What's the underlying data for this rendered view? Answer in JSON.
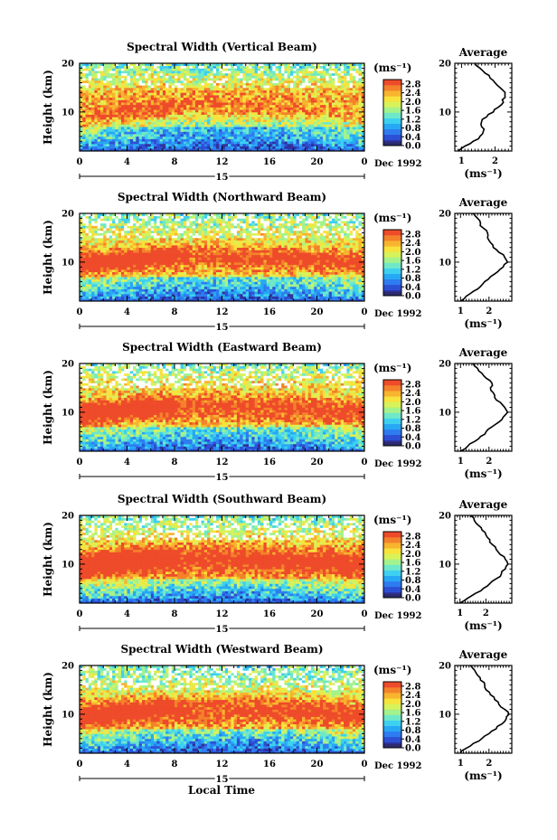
{
  "figure": {
    "colorbar_unit": "(ms⁻¹)",
    "colorbar_ticks": [
      "2.8",
      "2.4",
      "2.0",
      "1.6",
      "1.2",
      "0.8",
      "0.4",
      "0.0"
    ],
    "date_label": "Dec 1992",
    "day_label": "15",
    "ylabel": "Height (km)",
    "xlabel": "Local Time",
    "avg_title": "Average",
    "avg_xlabel": "(ms⁻¹)",
    "colors": {
      "scale": [
        "#30309a",
        "#2c4fd4",
        "#2e7cf0",
        "#27a8f4",
        "#3ed0f0",
        "#6ee8c8",
        "#a4f28c",
        "#d8f25a",
        "#f8e23c",
        "#f8b42e",
        "#f4822a",
        "#ee4b2a"
      ],
      "lowest": "#2b2b6e"
    }
  },
  "chart_data": [
    {
      "type": "heatmap",
      "title": "Spectral Width (Vertical Beam)",
      "x_ticks": [
        "0",
        "4",
        "8",
        "12",
        "16",
        "20",
        "0"
      ],
      "xlim": [
        0,
        24
      ],
      "y_ticks": [
        "20",
        "10"
      ],
      "ylim": [
        2,
        20
      ],
      "value_range": [
        0.0,
        3.0
      ],
      "profile": {
        "title": "Average",
        "x_ticks": [
          "1",
          "2"
        ],
        "xlim": [
          0.8,
          2.5
        ],
        "height": [
          2,
          3,
          4,
          5,
          6,
          7,
          8,
          9,
          10,
          11,
          12,
          13,
          14,
          15,
          16,
          17,
          18,
          19,
          20
        ],
        "value": [
          0.9,
          1.1,
          1.35,
          1.55,
          1.65,
          1.6,
          1.6,
          1.75,
          1.95,
          2.1,
          2.25,
          2.3,
          2.3,
          2.15,
          2.0,
          1.85,
          1.7,
          1.55,
          1.4
        ]
      }
    },
    {
      "type": "heatmap",
      "title": "Spectral Width (Northward Beam)",
      "x_ticks": [
        "0",
        "4",
        "8",
        "12",
        "16",
        "20",
        "0"
      ],
      "xlim": [
        0,
        24
      ],
      "y_ticks": [
        "20",
        "10"
      ],
      "ylim": [
        2,
        20
      ],
      "value_range": [
        0.0,
        3.0
      ],
      "profile": {
        "title": "Average",
        "x_ticks": [
          "1",
          "2"
        ],
        "xlim": [
          0.8,
          2.8
        ],
        "height": [
          2,
          3,
          4,
          5,
          6,
          7,
          8,
          9,
          10,
          11,
          12,
          13,
          14,
          15,
          16,
          17,
          18,
          19,
          20
        ],
        "value": [
          1.0,
          1.2,
          1.45,
          1.7,
          1.85,
          2.05,
          2.3,
          2.5,
          2.65,
          2.55,
          2.35,
          2.15,
          2.05,
          1.95,
          1.95,
          1.8,
          1.7,
          1.6,
          1.45
        ]
      }
    },
    {
      "type": "heatmap",
      "title": "Spectral Width (Eastward Beam)",
      "x_ticks": [
        "0",
        "4",
        "8",
        "12",
        "16",
        "20",
        "0"
      ],
      "xlim": [
        0,
        24
      ],
      "y_ticks": [
        "20",
        "10"
      ],
      "ylim": [
        2,
        20
      ],
      "value_range": [
        0.0,
        3.0
      ],
      "profile": {
        "title": "Average",
        "x_ticks": [
          "1",
          "2"
        ],
        "xlim": [
          0.8,
          2.8
        ],
        "height": [
          2,
          3,
          4,
          5,
          6,
          7,
          8,
          9,
          10,
          11,
          12,
          13,
          14,
          15,
          16,
          17,
          18,
          19,
          20
        ],
        "value": [
          1.0,
          1.25,
          1.5,
          1.7,
          1.9,
          2.1,
          2.35,
          2.5,
          2.65,
          2.55,
          2.4,
          2.2,
          2.15,
          2.05,
          2.1,
          1.9,
          1.75,
          1.6,
          1.45
        ]
      }
    },
    {
      "type": "heatmap",
      "title": "Spectral Width (Southward Beam)",
      "x_ticks": [
        "0",
        "4",
        "8",
        "12",
        "16",
        "20",
        "0"
      ],
      "xlim": [
        0,
        24
      ],
      "y_ticks": [
        "20",
        "10"
      ],
      "ylim": [
        2,
        20
      ],
      "value_range": [
        0.0,
        3.0
      ],
      "profile": {
        "title": "Average",
        "x_ticks": [
          "1",
          "2"
        ],
        "xlim": [
          0.8,
          3.0
        ],
        "height": [
          2,
          3,
          4,
          5,
          6,
          7,
          8,
          9,
          10,
          11,
          12,
          13,
          14,
          15,
          16,
          17,
          18,
          19,
          20
        ],
        "value": [
          1.0,
          1.3,
          1.6,
          1.9,
          2.15,
          2.4,
          2.6,
          2.75,
          2.85,
          2.75,
          2.55,
          2.4,
          2.25,
          2.15,
          2.0,
          1.85,
          1.7,
          1.55,
          1.4
        ]
      }
    },
    {
      "type": "heatmap",
      "title": "Spectral Width (Westward Beam)",
      "x_ticks": [
        "0",
        "4",
        "8",
        "12",
        "16",
        "20",
        "0"
      ],
      "xlim": [
        0,
        24
      ],
      "y_ticks": [
        "20",
        "10"
      ],
      "ylim": [
        2,
        20
      ],
      "value_range": [
        0.0,
        3.0
      ],
      "profile": {
        "title": "Average",
        "x_ticks": [
          "1",
          "2"
        ],
        "xlim": [
          0.8,
          2.8
        ],
        "height": [
          2,
          3,
          4,
          5,
          6,
          7,
          8,
          9,
          10,
          11,
          12,
          13,
          14,
          15,
          16,
          17,
          18,
          19,
          20
        ],
        "value": [
          1.0,
          1.2,
          1.45,
          1.75,
          2.0,
          2.25,
          2.45,
          2.6,
          2.7,
          2.55,
          2.35,
          2.2,
          2.05,
          1.9,
          1.85,
          1.7,
          1.6,
          1.5,
          1.35
        ]
      }
    }
  ]
}
